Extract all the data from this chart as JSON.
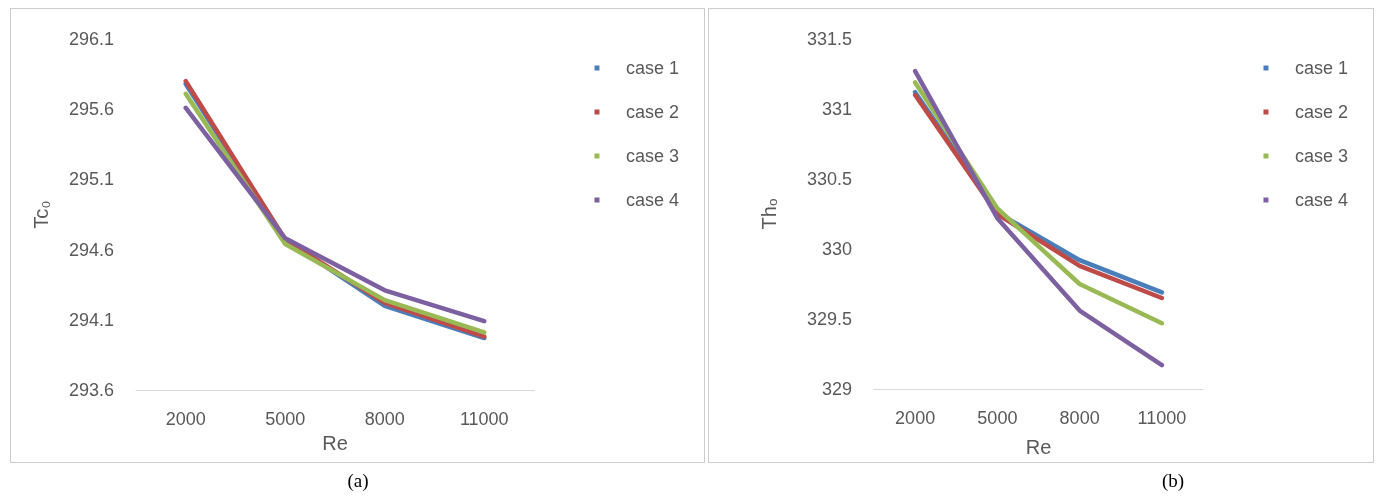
{
  "chart_data": [
    {
      "type": "line",
      "xlabel": "Re",
      "ylabel": "Tc₀",
      "categories": [
        "2000",
        "5000",
        "8000",
        "11000"
      ],
      "ylim": [
        293.6,
        296.1
      ],
      "yticks": [
        293.6,
        294.1,
        294.6,
        295.1,
        295.6,
        296.1
      ],
      "grid": false,
      "legend": "right",
      "marker": "none",
      "line_style": "solid",
      "annotations": [
        "(a)"
      ],
      "series": [
        {
          "name": "case 1",
          "color": "#4a7ebb",
          "values": [
            295.78,
            294.67,
            294.2,
            293.97
          ]
        },
        {
          "name": "case 2",
          "color": "#be4b48",
          "values": [
            295.8,
            294.67,
            294.22,
            293.98
          ]
        },
        {
          "name": "case 3",
          "color": "#98b954",
          "values": [
            295.71,
            294.64,
            294.24,
            294.01
          ]
        },
        {
          "name": "case 4",
          "color": "#7d60a0",
          "values": [
            295.61,
            294.68,
            294.31,
            294.09
          ]
        }
      ]
    },
    {
      "type": "line",
      "xlabel": "Re",
      "ylabel": "Thₒ",
      "categories": [
        "2000",
        "5000",
        "8000",
        "11000"
      ],
      "ylim": [
        329,
        331.5
      ],
      "yticks": [
        329,
        329.5,
        330,
        330.5,
        331,
        331.5
      ],
      "grid": false,
      "legend": "right",
      "marker": "none",
      "line_style": "solid",
      "annotations": [
        "(b)"
      ],
      "series": [
        {
          "name": "case 1",
          "color": "#4a7ebb",
          "values": [
            331.12,
            330.26,
            329.92,
            329.69
          ]
        },
        {
          "name": "case 2",
          "color": "#be4b48",
          "values": [
            331.1,
            330.25,
            329.88,
            329.65
          ]
        },
        {
          "name": "case 3",
          "color": "#98b954",
          "values": [
            331.19,
            330.29,
            329.75,
            329.47
          ]
        },
        {
          "name": "case 4",
          "color": "#7d60a0",
          "values": [
            331.27,
            330.22,
            329.56,
            329.17
          ]
        }
      ]
    }
  ]
}
